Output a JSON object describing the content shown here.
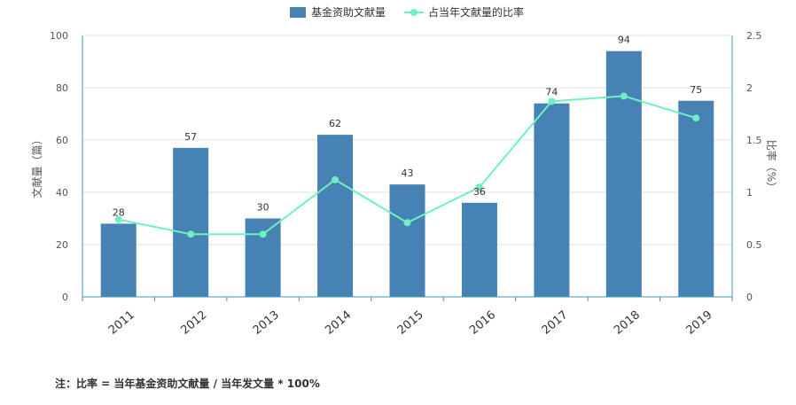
{
  "chart_data": {
    "type": "bar",
    "categories": [
      "2011",
      "2012",
      "2013",
      "2014",
      "2015",
      "2016",
      "2017",
      "2018",
      "2019"
    ],
    "series": [
      {
        "name": "基金资助文献量",
        "type": "bar",
        "axis": "left",
        "values": [
          28,
          57,
          30,
          62,
          43,
          36,
          74,
          94,
          75
        ],
        "data_labels": [
          "28",
          "57",
          "30",
          "62",
          "43",
          "36",
          "74",
          "94",
          "75"
        ]
      },
      {
        "name": "占当年文献量的比率",
        "type": "line",
        "axis": "right",
        "values": [
          0.74,
          0.6,
          0.6,
          1.12,
          0.71,
          1.05,
          1.87,
          1.92,
          1.71
        ]
      }
    ],
    "ylabel": "文献量（篇）",
    "y2label": "比率（%）",
    "ylim": [
      0,
      100
    ],
    "y2lim": [
      0,
      2.5
    ],
    "yticks": [
      "0",
      "20",
      "40",
      "60",
      "80",
      "100"
    ],
    "y2ticks": [
      "0",
      "0.5",
      "1",
      "1.5",
      "2",
      "2.5"
    ],
    "grid": true,
    "legend": "top-center",
    "colors": {
      "bar": "#4682b4",
      "line": "#6ef0c0",
      "right_axis": "#3a9bb0"
    }
  },
  "note": "注：比率 = 当年基金资助文献量 / 当年发文量 * 100%"
}
